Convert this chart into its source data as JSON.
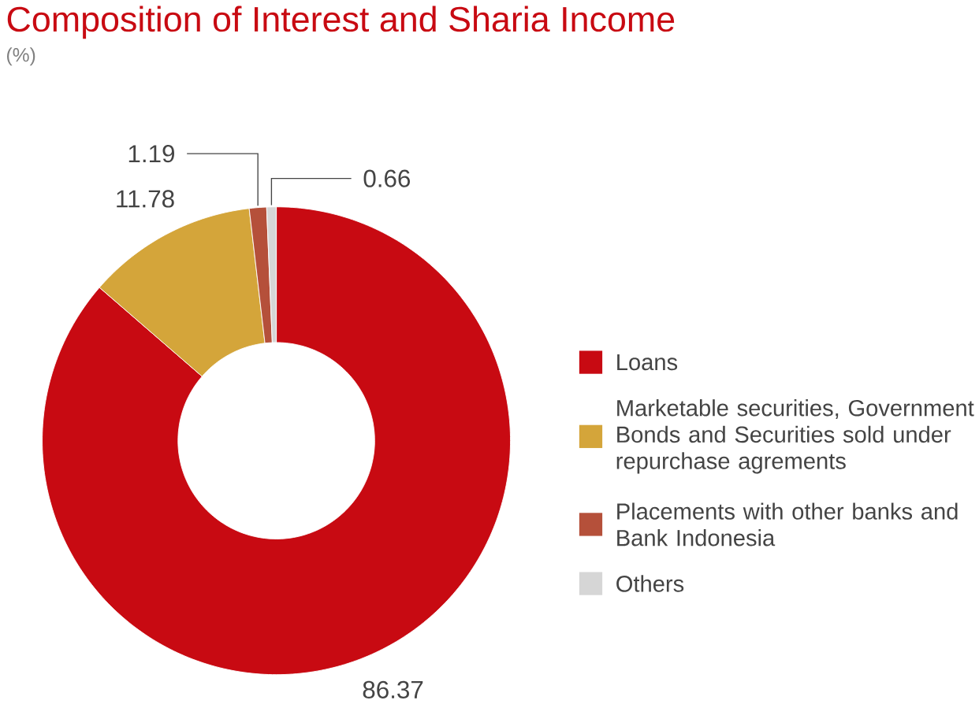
{
  "chart_data": {
    "type": "donut",
    "title": "Composition of Interest and Sharia Income",
    "subtitle": "(%)",
    "categories": [
      "Loans",
      "Marketable securities, Government Bonds and Securities sold under repurchase agrements",
      "Placements with other banks and Bank Indonesia",
      "Others"
    ],
    "values": [
      86.37,
      11.78,
      1.19,
      0.66
    ],
    "colors": [
      "#c80a12",
      "#d4a53a",
      "#b5503a",
      "#d6d6d6"
    ],
    "data_labels": true,
    "legend": "right"
  }
}
